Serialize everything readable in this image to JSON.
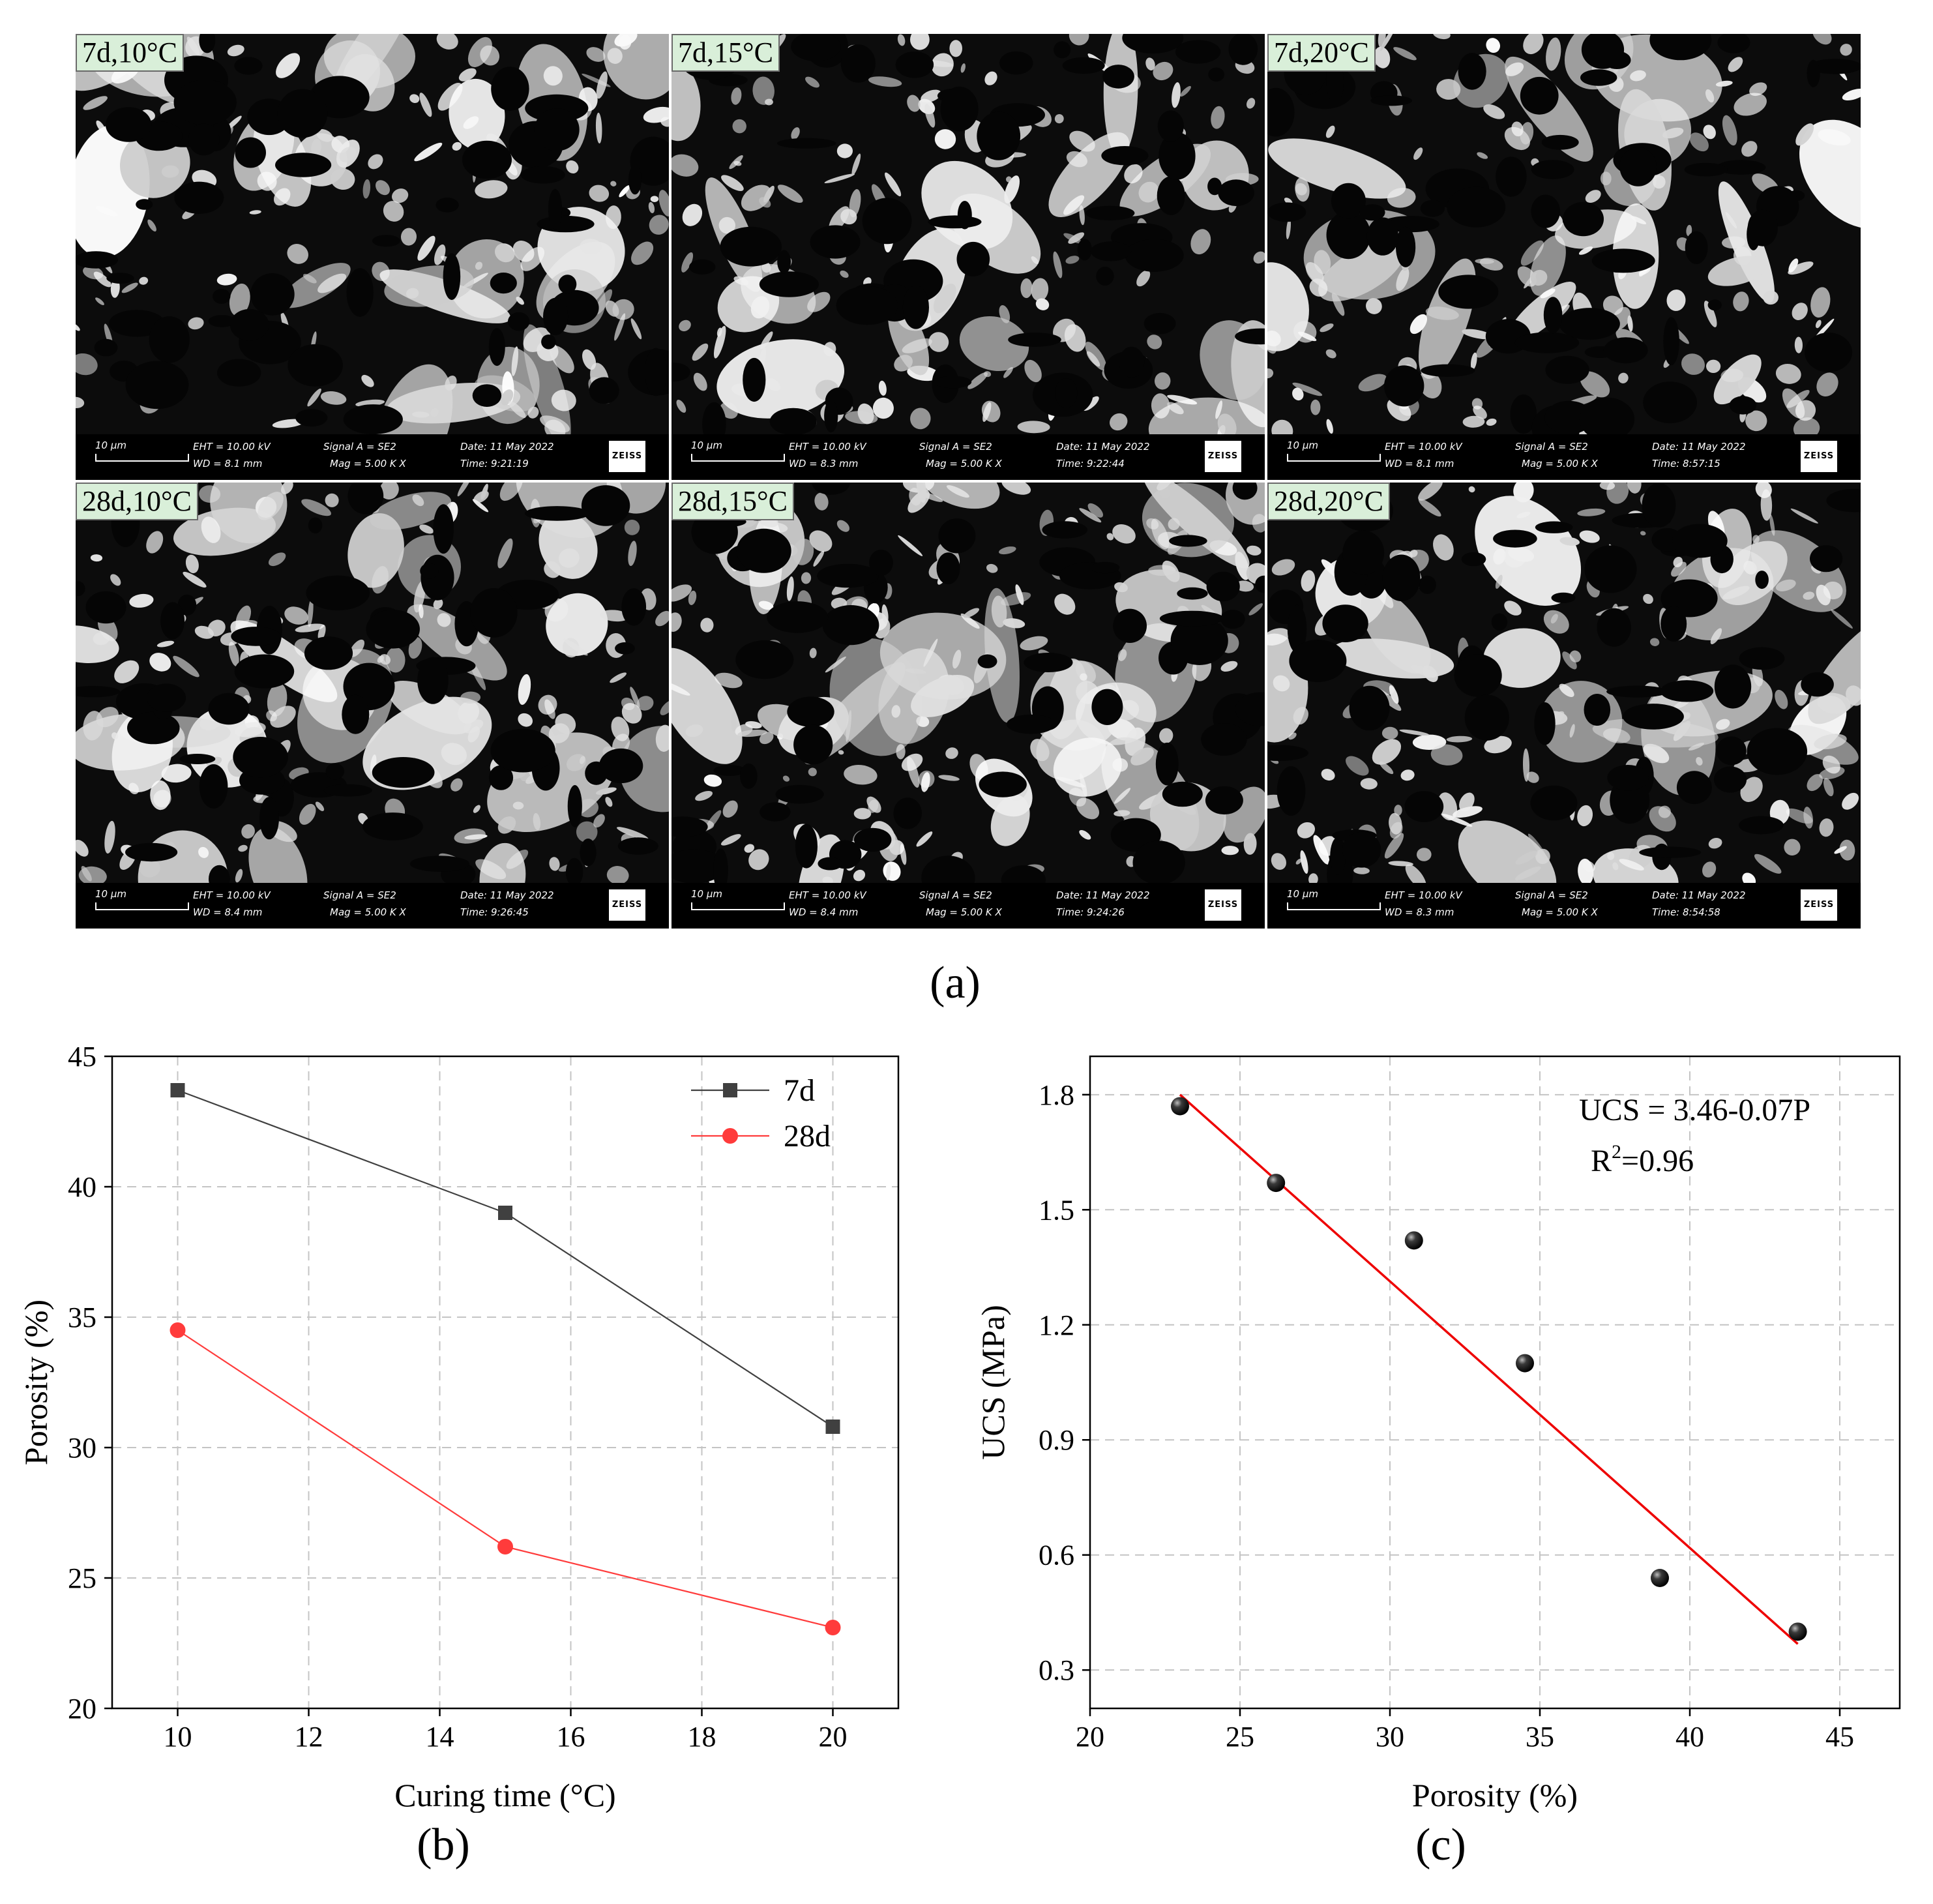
{
  "sem_panels": [
    {
      "label": "7d,10°C",
      "scale": "10 μm",
      "eht": "EHT = 10.00 kV",
      "wd": "WD =  8.1 mm",
      "signal": "Signal A = SE2",
      "mag": "Mag =    5.00 K X",
      "date": "Date: 11 May 2022",
      "time": "Time: 9:21:19",
      "brand": "ZEISS"
    },
    {
      "label": "7d,15°C",
      "scale": "10 μm",
      "eht": "EHT = 10.00 kV",
      "wd": "WD =  8.3 mm",
      "signal": "Signal A = SE2",
      "mag": "Mag =    5.00 K X",
      "date": "Date: 11 May 2022",
      "time": "Time: 9:22:44",
      "brand": "ZEISS"
    },
    {
      "label": "7d,20°C",
      "scale": "10 μm",
      "eht": "EHT = 10.00 kV",
      "wd": "WD =  8.1 mm",
      "signal": "Signal A = SE2",
      "mag": "Mag =    5.00 K X",
      "date": "Date: 11 May 2022",
      "time": "Time: 8:57:15",
      "brand": "ZEISS"
    },
    {
      "label": "28d,10°C",
      "scale": "10 μm",
      "eht": "EHT = 10.00 kV",
      "wd": "WD =  8.4 mm",
      "signal": "Signal A = SE2",
      "mag": "Mag =    5.00 K X",
      "date": "Date: 11 May 2022",
      "time": "Time: 9:26:45",
      "brand": "ZEISS"
    },
    {
      "label": "28d,15°C",
      "scale": "10 μm",
      "eht": "EHT = 10.00 kV",
      "wd": "WD =  8.4 mm",
      "signal": "Signal A = SE2",
      "mag": "Mag =    5.00 K X",
      "date": "Date: 11 May 2022",
      "time": "Time: 9:24:26",
      "brand": "ZEISS"
    },
    {
      "label": "28d,20°C",
      "scale": "10 μm",
      "eht": "EHT = 10.00 kV",
      "wd": "WD =  8.3 mm",
      "signal": "Signal A = SE2",
      "mag": "Mag =    5.00 K X",
      "date": "Date: 11 May 2022",
      "time": "Time: 8:54:58",
      "brand": "ZEISS"
    }
  ],
  "captions": {
    "a": "(a)",
    "b": "(b)",
    "c": "(c)"
  },
  "chart_data": [
    {
      "type": "line",
      "xlabel": "Curing time (°C)",
      "ylabel": "Porosity (%)",
      "xlim": [
        9,
        21
      ],
      "ylim": [
        20,
        45
      ],
      "xticks": [
        10,
        12,
        14,
        16,
        18,
        20
      ],
      "yticks": [
        20,
        25,
        30,
        35,
        40,
        45
      ],
      "grid": true,
      "legend_position": "top-right",
      "x": [
        10,
        15,
        20
      ],
      "series": [
        {
          "name": "7d",
          "values": [
            43.7,
            39.0,
            30.8
          ],
          "color": "#404040",
          "marker": "square"
        },
        {
          "name": "28d",
          "values": [
            34.5,
            26.2,
            23.1
          ],
          "color": "#ff3b3b",
          "marker": "circle"
        }
      ]
    },
    {
      "type": "scatter",
      "xlabel": "Porosity (%)",
      "ylabel": "UCS (MPa)",
      "xlim": [
        20,
        47
      ],
      "ylim": [
        0.2,
        1.9
      ],
      "xticks": [
        20,
        25,
        30,
        35,
        40,
        45
      ],
      "yticks": [
        0.3,
        0.6,
        0.9,
        1.2,
        1.5,
        1.8
      ],
      "grid": true,
      "points": [
        {
          "x": 23.0,
          "y": 1.77
        },
        {
          "x": 26.2,
          "y": 1.57
        },
        {
          "x": 30.8,
          "y": 1.42
        },
        {
          "x": 34.5,
          "y": 1.1
        },
        {
          "x": 39.0,
          "y": 0.54
        },
        {
          "x": 43.6,
          "y": 0.4
        }
      ],
      "fit": {
        "x_range": [
          23.0,
          43.6
        ],
        "slope": -0.07,
        "intercept": 3.46,
        "color": "#ee0000"
      },
      "annotations": {
        "equation": "UCS = 3.46-0.07P",
        "r2_prefix": "R",
        "r2_sup": "2",
        "r2_value": "=0.96"
      },
      "point_color": "#111111"
    }
  ]
}
